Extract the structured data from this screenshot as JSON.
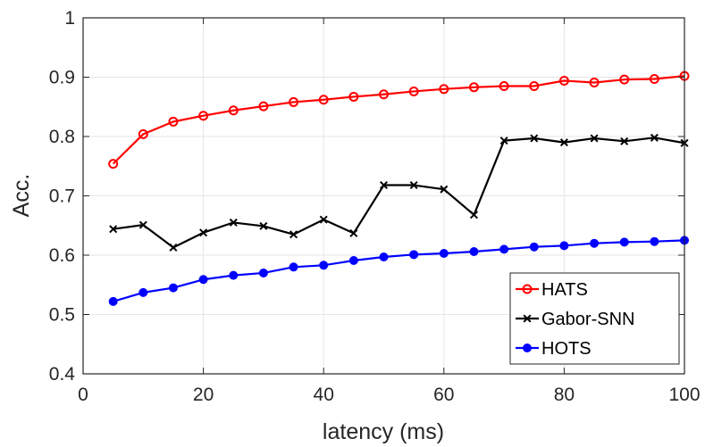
{
  "chart_data": {
    "type": "line",
    "title": "",
    "xlabel": "latency (ms)",
    "ylabel": "Acc.",
    "xlim": [
      0,
      100
    ],
    "ylim": [
      0.4,
      1.0
    ],
    "xticks": [
      0,
      20,
      40,
      60,
      80,
      100
    ],
    "yticks": [
      0.4,
      0.5,
      0.6,
      0.7,
      0.8,
      0.9,
      1.0
    ],
    "xtick_labels": [
      "0",
      "20",
      "40",
      "60",
      "80",
      "100"
    ],
    "ytick_labels": [
      "0.4",
      "0.5",
      "0.6",
      "0.7",
      "0.8",
      "0.9",
      "1"
    ],
    "grid": true,
    "legend_position": "bottom-right",
    "x": [
      5,
      10,
      15,
      20,
      25,
      30,
      35,
      40,
      45,
      50,
      55,
      60,
      65,
      70,
      75,
      80,
      85,
      90,
      95,
      100
    ],
    "series": [
      {
        "name": "HATS",
        "color": "#ff0000",
        "marker": "circle-open",
        "values": [
          0.754,
          0.804,
          0.825,
          0.835,
          0.844,
          0.851,
          0.858,
          0.862,
          0.867,
          0.871,
          0.876,
          0.88,
          0.883,
          0.885,
          0.885,
          0.894,
          0.891,
          0.896,
          0.897,
          0.902
        ]
      },
      {
        "name": "Gabor-SNN",
        "color": "#000000",
        "marker": "x",
        "values": [
          0.644,
          0.651,
          0.613,
          0.638,
          0.655,
          0.649,
          0.635,
          0.66,
          0.637,
          0.718,
          0.718,
          0.711,
          0.668,
          0.793,
          0.797,
          0.79,
          0.797,
          0.792,
          0.798,
          0.789
        ]
      },
      {
        "name": "HOTS",
        "color": "#0000ff",
        "marker": "circle-filled",
        "values": [
          0.522,
          0.537,
          0.545,
          0.559,
          0.566,
          0.57,
          0.58,
          0.583,
          0.591,
          0.597,
          0.601,
          0.603,
          0.606,
          0.61,
          0.614,
          0.616,
          0.62,
          0.622,
          0.623,
          0.625
        ]
      }
    ]
  }
}
